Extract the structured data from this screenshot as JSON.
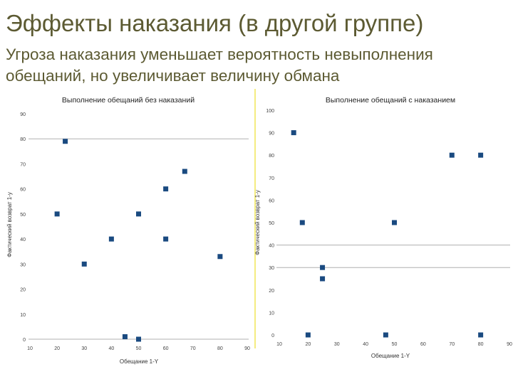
{
  "slide": {
    "title": "Эффекты наказания (в другой группе)",
    "subtitle_line1": "Угроза наказания уменьшает вероятность невыполнения",
    "subtitle_line2": "обещаний, но увеличивает величину обмана"
  },
  "colors": {
    "text": "#5c5a32",
    "marker": "#1a4a80",
    "gridline": "#b0b0b0",
    "separator": "#f4ec80"
  },
  "chart_data": [
    {
      "type": "scatter",
      "title": "Выполнение обещаний без наказаний",
      "xlabel": "Обещание 1-Y",
      "ylabel": "Фактический возврат 1-y",
      "xlim": [
        10,
        90
      ],
      "ylim": [
        0,
        90
      ],
      "x_ticks": [
        "10",
        "20",
        "30",
        "40",
        "50",
        "60",
        "70",
        "80",
        "90"
      ],
      "y_ticks": [
        "0",
        "10",
        "20",
        "30",
        "40",
        "50",
        "60",
        "70",
        "80",
        "90"
      ],
      "gridlines_at": [
        0,
        80
      ],
      "points": [
        {
          "x": 23,
          "y": 79
        },
        {
          "x": 67,
          "y": 67
        },
        {
          "x": 60,
          "y": 60
        },
        {
          "x": 20,
          "y": 50
        },
        {
          "x": 50,
          "y": 50
        },
        {
          "x": 40,
          "y": 40
        },
        {
          "x": 60,
          "y": 40
        },
        {
          "x": 80,
          "y": 33
        },
        {
          "x": 30,
          "y": 30
        },
        {
          "x": 45,
          "y": 1
        },
        {
          "x": 50,
          "y": 0
        }
      ]
    },
    {
      "type": "scatter",
      "title": "Выполнение обещаний с наказанием",
      "xlabel": "Обещание 1-Y",
      "ylabel": "Фактический возврат 1-y",
      "xlim": [
        10,
        90
      ],
      "ylim": [
        0,
        100
      ],
      "x_ticks": [
        "10",
        "20",
        "30",
        "40",
        "50",
        "60",
        "70",
        "80",
        "90"
      ],
      "y_ticks": [
        "0",
        "10",
        "20",
        "30",
        "40",
        "50",
        "60",
        "70",
        "80",
        "90",
        "100"
      ],
      "gridlines_at": [
        30,
        40
      ],
      "points": [
        {
          "x": 15,
          "y": 90
        },
        {
          "x": 70,
          "y": 80
        },
        {
          "x": 80,
          "y": 80
        },
        {
          "x": 18,
          "y": 50
        },
        {
          "x": 50,
          "y": 50
        },
        {
          "x": 25,
          "y": 30
        },
        {
          "x": 25,
          "y": 25
        },
        {
          "x": 20,
          "y": 0
        },
        {
          "x": 47,
          "y": 0
        },
        {
          "x": 80,
          "y": 0
        }
      ]
    }
  ]
}
